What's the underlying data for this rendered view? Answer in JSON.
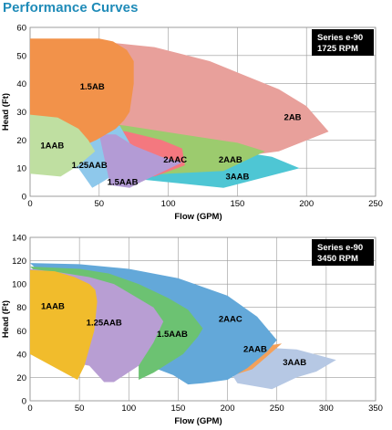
{
  "page_title": "Performance Curves",
  "chart_data": [
    {
      "type": "area",
      "box": [
        "Series e-90",
        "1725 RPM"
      ],
      "xlabel": "Flow (GPM)",
      "ylabel": "Head (Ft)",
      "xlim": [
        0,
        250
      ],
      "ylim": [
        0,
        60
      ],
      "xticks": [
        0,
        50,
        100,
        150,
        200,
        250
      ],
      "yticks": [
        0,
        10,
        20,
        30,
        40,
        50,
        60
      ],
      "grid": true,
      "regions": [
        {
          "name": "2AB",
          "color": "#e8a09b",
          "label_at": [
            190,
            28
          ],
          "points": [
            [
              0,
              55
            ],
            [
              50,
              55
            ],
            [
              90,
              53
            ],
            [
              130,
              48
            ],
            [
              160,
              42
            ],
            [
              180,
              38
            ],
            [
              200,
              32
            ],
            [
              216,
              23
            ],
            [
              180,
              16
            ],
            [
              120,
              12
            ],
            [
              80,
              11
            ]
          ]
        },
        {
          "name": "3AAB",
          "color": "#4ec6d4",
          "label_at": [
            150,
            7
          ],
          "points": [
            [
              65,
              12
            ],
            [
              105,
              16
            ],
            [
              150,
              16
            ],
            [
              175,
              14
            ],
            [
              195,
              10
            ],
            [
              140,
              3
            ],
            [
              80,
              6
            ]
          ]
        },
        {
          "name": "2AAB",
          "color": "#9ccb6e",
          "label_at": [
            145,
            13
          ],
          "points": [
            [
              0,
              28
            ],
            [
              40,
              27
            ],
            [
              70,
              25
            ],
            [
              110,
              22
            ],
            [
              150,
              19
            ],
            [
              170,
              16
            ],
            [
              140,
              9
            ],
            [
              100,
              8
            ],
            [
              70,
              7
            ]
          ]
        },
        {
          "name": "2AAC",
          "color": "#f4787f",
          "label_at": [
            105,
            13
          ],
          "points": [
            [
              0,
              26
            ],
            [
              40,
              25
            ],
            [
              70,
              23
            ],
            [
              95,
              20
            ],
            [
              110,
              17
            ],
            [
              112,
              11
            ],
            [
              90,
              7
            ],
            [
              60,
              8
            ]
          ]
        },
        {
          "name": "1.25AAB",
          "color": "#8ec8eb",
          "label_at": [
            43,
            11
          ],
          "points": [
            [
              0,
              29
            ],
            [
              30,
              28
            ],
            [
              55,
              27
            ],
            [
              65,
              25
            ],
            [
              72,
              19
            ],
            [
              68,
              10
            ],
            [
              52,
              5
            ],
            [
              45,
              3
            ],
            [
              35,
              10
            ],
            [
              0,
              10
            ]
          ]
        },
        {
          "name": "1.5AAB",
          "color": "#b39bd5",
          "label_at": [
            67,
            5
          ],
          "points": [
            [
              50,
              22
            ],
            [
              62,
              22
            ],
            [
              75,
              18
            ],
            [
              95,
              14
            ],
            [
              110,
              12
            ],
            [
              80,
              5
            ],
            [
              72,
              3
            ],
            [
              58,
              4
            ]
          ]
        },
        {
          "name": "1.5AB",
          "color": "#f2924a",
          "label_at": [
            45,
            39
          ],
          "points": [
            [
              0,
              56
            ],
            [
              50,
              56
            ],
            [
              60,
              55
            ],
            [
              70,
              52
            ],
            [
              75,
              48
            ],
            [
              75,
              40
            ],
            [
              72,
              30
            ],
            [
              68,
              27
            ],
            [
              62,
              24
            ],
            [
              48,
              20
            ],
            [
              30,
              16
            ],
            [
              0,
              10
            ]
          ]
        },
        {
          "name": "1AAB",
          "color": "#bfdfa1",
          "label_at": [
            16,
            18
          ],
          "points": [
            [
              0,
              29
            ],
            [
              20,
              28
            ],
            [
              35,
              24
            ],
            [
              42,
              20
            ],
            [
              47,
              16
            ],
            [
              35,
              11
            ],
            [
              22,
              7
            ],
            [
              0,
              8
            ]
          ]
        }
      ]
    },
    {
      "type": "area",
      "box": [
        "Series e-90",
        "3450 RPM"
      ],
      "xlabel": "Flow (GPM)",
      "ylabel": "Head (Ft)",
      "xlim": [
        0,
        350
      ],
      "ylim": [
        0,
        140
      ],
      "xticks": [
        0,
        50,
        100,
        150,
        200,
        250,
        300,
        350
      ],
      "yticks": [
        0,
        20,
        40,
        60,
        80,
        100,
        120,
        140
      ],
      "grid": true,
      "regions": [
        {
          "name": "3AAB",
          "color": "#b6c8e4",
          "label_at": [
            268,
            33
          ],
          "points": [
            [
              190,
              42
            ],
            [
              230,
              46
            ],
            [
              270,
              44
            ],
            [
              310,
              35
            ],
            [
              290,
              25
            ],
            [
              270,
              20
            ],
            [
              245,
              10
            ],
            [
              210,
              15
            ]
          ]
        },
        {
          "name": "2AAB",
          "color": "#f4a15a",
          "label_at": [
            228,
            44
          ],
          "points": [
            [
              175,
              35
            ],
            [
              205,
              40
            ],
            [
              230,
              46
            ],
            [
              255,
              49
            ],
            [
              240,
              38
            ],
            [
              225,
              27
            ],
            [
              210,
              23
            ],
            [
              185,
              19
            ]
          ]
        },
        {
          "name": "2AAC",
          "color": "#63a8d9",
          "label_at": [
            203,
            70
          ],
          "points": [
            [
              0,
              118
            ],
            [
              50,
              117
            ],
            [
              100,
              113
            ],
            [
              150,
              105
            ],
            [
              200,
              90
            ],
            [
              230,
              72
            ],
            [
              250,
              52
            ],
            [
              240,
              42
            ],
            [
              220,
              28
            ],
            [
              200,
              18
            ],
            [
              175,
              15
            ],
            [
              160,
              14
            ],
            [
              145,
              22
            ],
            [
              120,
              30
            ],
            [
              100,
              40
            ]
          ]
        },
        {
          "name": "1.5AAB",
          "color": "#6cc272",
          "label_at": [
            144,
            57
          ],
          "points": [
            [
              0,
              115
            ],
            [
              50,
              113
            ],
            [
              80,
              109
            ],
            [
              110,
              100
            ],
            [
              140,
              88
            ],
            [
              160,
              78
            ],
            [
              175,
              62
            ],
            [
              170,
              55
            ],
            [
              155,
              40
            ],
            [
              125,
              24
            ],
            [
              110,
              18
            ],
            [
              110,
              30
            ],
            [
              100,
              40
            ]
          ]
        },
        {
          "name": "1.25AAB",
          "color": "#b89ed3",
          "label_at": [
            75,
            67
          ],
          "points": [
            [
              0,
              113
            ],
            [
              30,
              110
            ],
            [
              60,
              106
            ],
            [
              85,
              100
            ],
            [
              105,
              90
            ],
            [
              125,
              80
            ],
            [
              135,
              68
            ],
            [
              125,
              50
            ],
            [
              110,
              30
            ],
            [
              85,
              16
            ],
            [
              75,
              16
            ],
            [
              60,
              30
            ],
            [
              0,
              40
            ]
          ]
        },
        {
          "name": "1AAB",
          "color": "#f1bc2c",
          "label_at": [
            23,
            81
          ],
          "points": [
            [
              0,
              112
            ],
            [
              25,
              111
            ],
            [
              45,
              106
            ],
            [
              60,
              100
            ],
            [
              66,
              95
            ],
            [
              68,
              85
            ],
            [
              65,
              60
            ],
            [
              55,
              30
            ],
            [
              48,
              18
            ],
            [
              0,
              40
            ]
          ]
        }
      ]
    }
  ]
}
